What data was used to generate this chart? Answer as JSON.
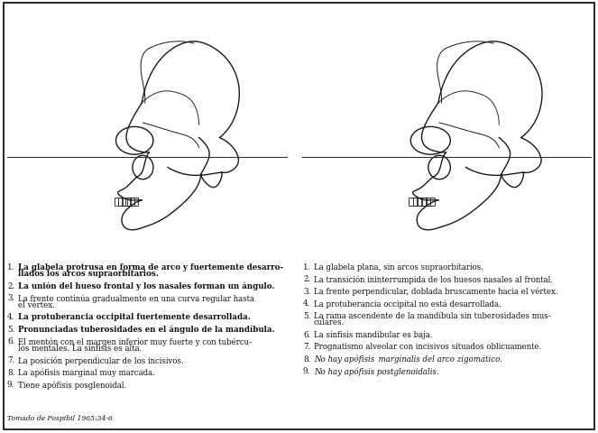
{
  "bg_color": "#ffffff",
  "border_color": "#000000",
  "text_color": "#111111",
  "caption": "Tomado de Pospibil 1965:34-6",
  "left_column": [
    {
      "num": "1.",
      "lines": [
        "La glabela protrusa en forma de arco y fuertemente desarro-",
        "llados los arcos supraorbitarios."
      ],
      "bold": true
    },
    {
      "num": "2.",
      "lines": [
        "La unión del hueso frontal y los nasales forman un ángulo."
      ],
      "bold": true
    },
    {
      "num": "3.",
      "lines": [
        "La frente continúa gradualmente en una curva regular hasta",
        "el vértex."
      ],
      "bold": false
    },
    {
      "num": "4.",
      "lines": [
        "La protuberancia occipital fuertemente desarrollada."
      ],
      "bold": true
    },
    {
      "num": "5.",
      "lines": [
        "Pronunciadas tuberosidades en el ángulo de la mandíbula."
      ],
      "bold": true
    },
    {
      "num": "6.",
      "lines": [
        "El mentón con el margen inferior muy fuerte y con tubércu-",
        "los mentales. La sínfisis es alta."
      ],
      "bold": false
    },
    {
      "num": "7.",
      "lines": [
        "La posición perpendicular de los incisivos."
      ],
      "bold": false
    },
    {
      "num": "8.",
      "lines": [
        "La apófisis marginal muy marcada."
      ],
      "bold": false
    },
    {
      "num": "9.",
      "lines": [
        "Tiene apófisis posglenoidal."
      ],
      "bold": false
    }
  ],
  "right_column": [
    {
      "num": "1.",
      "lines": [
        "La glabela plana, sin arcos supraorbitarios."
      ],
      "bold": false
    },
    {
      "num": "2.",
      "lines": [
        "La transición ininterrumpida de los huesos nasales al frontal."
      ],
      "bold": false
    },
    {
      "num": "3.",
      "lines": [
        "La frente perpendicular, doblada bruscamente hacia el vértex."
      ],
      "bold": false
    },
    {
      "num": "4.",
      "lines": [
        "La protuberancia occipital no está desarrollada."
      ],
      "bold": false
    },
    {
      "num": "5.",
      "lines": [
        "La rama ascendente de la mandíbula sin tuberosidades mus-",
        "culares."
      ],
      "bold": false
    },
    {
      "num": "6.",
      "lines": [
        "La sínfisis mandibular es baja."
      ],
      "bold": false
    },
    {
      "num": "7.",
      "lines": [
        "Prognatismo alveolar con incisivos situados oblicuamente."
      ],
      "bold": false
    },
    {
      "num": "8.",
      "lines": [
        "No hay apófisis  marginalis del arco zigomático."
      ],
      "bold": false,
      "italic": true
    },
    {
      "num": "9.",
      "lines": [
        "No hay apófisis postglenoidalis."
      ],
      "bold": false,
      "italic": true
    }
  ]
}
